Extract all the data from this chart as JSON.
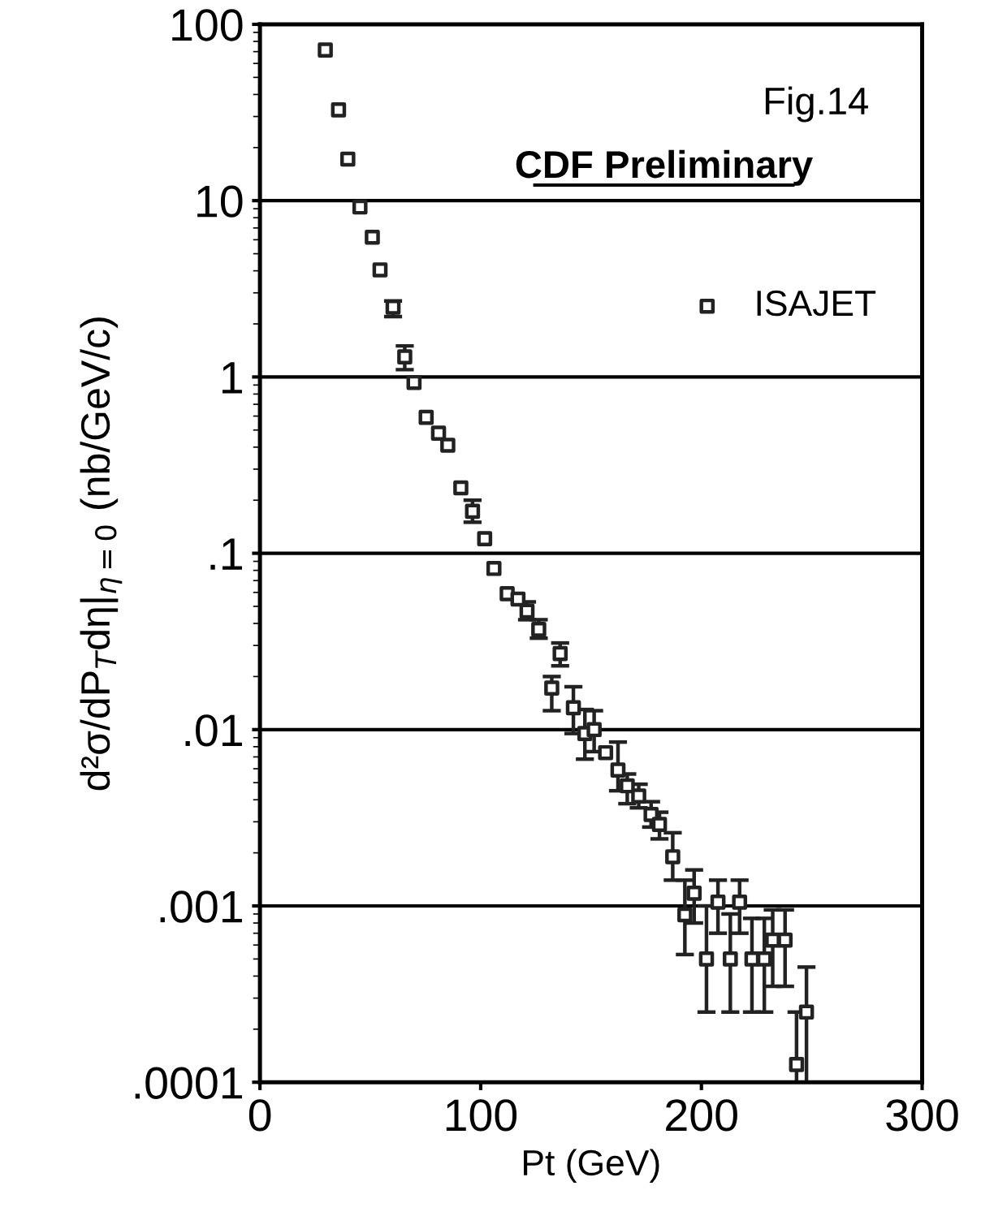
{
  "chart_data": {
    "type": "scatter",
    "xlabel": "Pt (GeV)",
    "ylabel": "d²σ/dP$_{T}$dη|$_{η=0}$ (nb/GeV/c)",
    "annotations": [
      "Fig.14",
      "CDF Preliminary"
    ],
    "x": [
      29.6,
      35.6,
      39.8,
      45.3,
      50.9,
      54.4,
      60.3,
      65.6,
      69.8,
      75.3,
      80.9,
      85.1,
      91.0,
      96.3,
      101.8,
      106.0,
      112.0,
      116.9,
      121.0,
      126.3,
      132.2,
      136.0,
      142.0,
      147.2,
      151.4,
      156.6,
      162.2,
      166.4,
      171.6,
      177.2,
      181.0,
      187.0,
      192.5,
      196.7,
      202.3,
      207.5,
      213.1,
      217.3,
      222.9,
      228.5,
      232.3,
      237.9,
      243.1,
      247.6
    ],
    "series": [
      {
        "name": "ISAJET",
        "color": "#222222",
        "values": [
          71.5,
          32.7,
          17.2,
          9.2,
          6.2,
          4.05,
          2.49,
          1.3,
          0.93,
          0.59,
          0.48,
          0.41,
          0.235,
          0.173,
          0.121,
          0.082,
          0.059,
          0.055,
          0.047,
          0.037,
          0.0172,
          0.027,
          0.0133,
          0.0095,
          0.01,
          0.0074,
          0.0059,
          0.0048,
          0.0042,
          0.0033,
          0.0029,
          0.0019,
          0.00089,
          0.00118,
          0.0005,
          0.00105,
          0.0005,
          0.00105,
          0.0005,
          0.0005,
          0.00064,
          0.00064,
          0.000126,
          0.00025
        ],
        "errors": [
          null,
          null,
          null,
          null,
          null,
          null,
          [
            2.2,
            2.7
          ],
          [
            1.1,
            1.5
          ],
          null,
          null,
          null,
          null,
          null,
          [
            0.15,
            0.2
          ],
          null,
          null,
          null,
          null,
          [
            0.042,
            0.053
          ],
          [
            0.033,
            0.042
          ],
          [
            0.0128,
            0.02
          ],
          [
            0.023,
            0.031
          ],
          [
            0.0095,
            0.0175
          ],
          [
            0.0068,
            0.013
          ],
          [
            0.0075,
            0.0128
          ],
          null,
          [
            0.0045,
            0.0085
          ],
          [
            0.0038,
            0.0056
          ],
          [
            0.0036,
            0.0049
          ],
          [
            0.0028,
            0.0039
          ],
          [
            0.0024,
            0.0034
          ],
          [
            0.0014,
            0.0026
          ],
          [
            0.00053,
            0.0014
          ],
          [
            0.0008,
            0.0016
          ],
          [
            0.00025,
            0.001
          ],
          [
            0.0007,
            0.0014
          ],
          [
            0.00025,
            0.0009
          ],
          [
            0.0007,
            0.0014
          ],
          [
            0.00025,
            0.00085
          ],
          [
            0.00025,
            0.00085
          ],
          [
            0.00035,
            0.00095
          ],
          [
            0.00035,
            0.00095
          ],
          [
            0.0001,
            0.00025
          ],
          [
            0.0001,
            0.00045
          ]
        ]
      }
    ],
    "log": "y",
    "grid": "y",
    "legend": "top right",
    "marker": "square",
    "xlim": [
      0,
      300
    ],
    "xticks": [
      0,
      100,
      200,
      300
    ],
    "ylim": [
      0.0001,
      100
    ],
    "yticks": [
      {
        "value": 0.0001,
        "label": ".0001"
      },
      {
        "value": 0.001,
        "label": ".001"
      },
      {
        "value": 0.01,
        "label": ".01"
      },
      {
        "value": 0.1,
        "label": ".1"
      },
      1,
      10,
      100
    ]
  }
}
